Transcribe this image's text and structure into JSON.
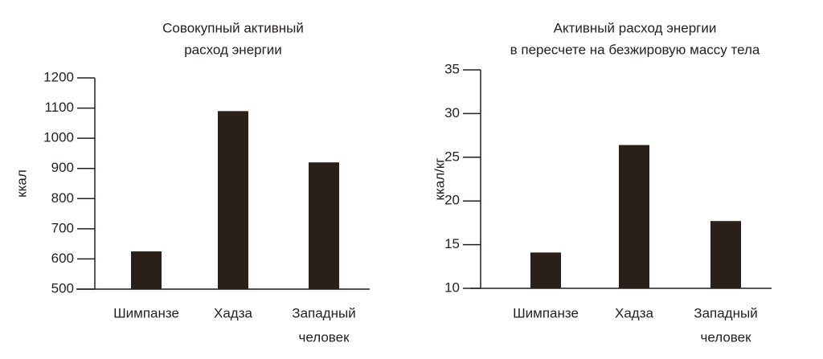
{
  "chart_data": [
    {
      "type": "bar",
      "title": [
        "Совокупный активный",
        "расход энергии"
      ],
      "y_label": "ккал",
      "categories": [
        [
          "Шимпанзе"
        ],
        [
          "Хадза"
        ],
        [
          "Западный",
          "человек"
        ]
      ],
      "values": [
        625,
        1090,
        920
      ],
      "color": "#2a2019",
      "ylim": [
        500,
        1200
      ],
      "yticks": [
        500,
        600,
        700,
        800,
        900,
        1000,
        1100,
        1200
      ]
    },
    {
      "type": "bar",
      "title": [
        "Активный расход энергии",
        "в пересчете на безжировую массу тела"
      ],
      "y_label": "ккал/кг",
      "categories": [
        [
          "Шимпанзе"
        ],
        [
          "Хадза"
        ],
        [
          "Западный",
          "человек"
        ]
      ],
      "values": [
        14.1,
        26.4,
        17.7
      ],
      "color": "#2a2019",
      "ylim": [
        10,
        35
      ],
      "yticks": [
        10,
        15,
        20,
        25,
        30,
        35
      ]
    }
  ]
}
